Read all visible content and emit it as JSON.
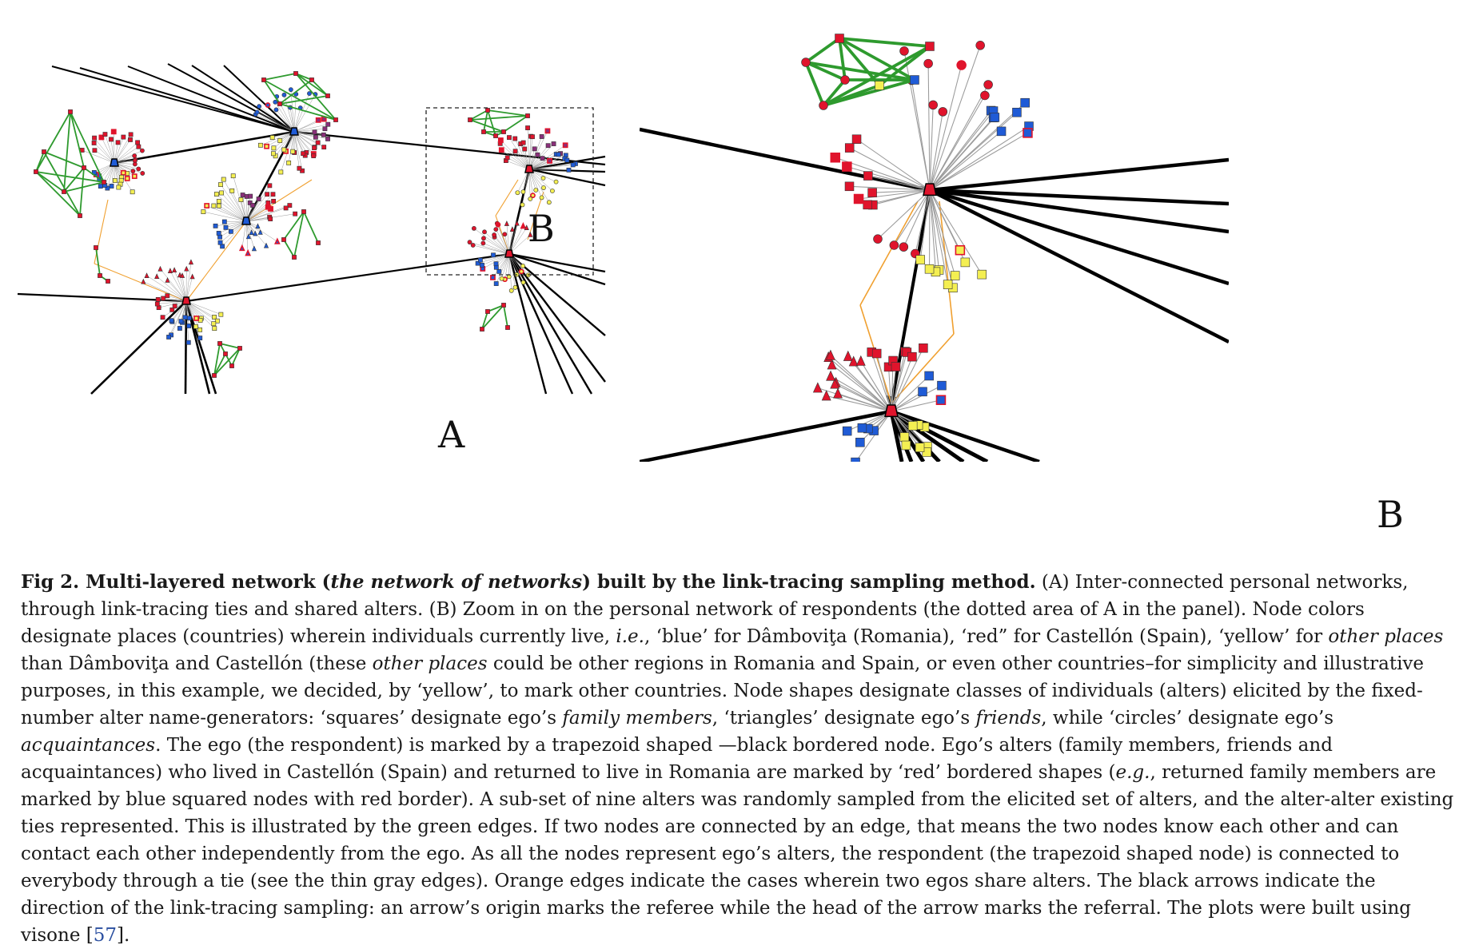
{
  "figure": {
    "panel_a_label": "A",
    "panel_a_inset_label": "B",
    "panel_b_label": "B",
    "colors": {
      "blue": "#1f5bd6",
      "red": "#e0142c",
      "yellow": "#f4ef52",
      "green": "#2e9a2e",
      "orange": "#f0a030",
      "gray": "#9a9a9a",
      "purple": "#8a2f7a"
    }
  },
  "caption": {
    "fig_label": "Fig 2.",
    "title_part1": " Multi-layered network (",
    "title_italic": "the network of networks",
    "title_part2": ") built by the link-tracing sampling method.",
    "s1": " (A) Inter-connected personal networks, through link-tracing ties and shared alters. (B) Zoom in on the personal network of respondents (the dotted area of A in the panel). Node colors designate places (countries) wherein individuals currently live, ",
    "s2_i": "i.e.",
    "s3": ", ‘blue’ for Dâmboviţa (Romania), ‘red” for Castellón (Spain), ‘yellow’ for ",
    "s4_i": "other places",
    "s5": " than Dâmboviţa and Castellón (these ",
    "s6_i": "other places",
    "s7": " could be other regions in Romania and Spain, or even other countries–for simplicity and illustrative purposes, in this example, we decided, by ‘yellow’, to mark other countries. Node shapes designate classes of individuals (alters) elicited by the fixed-number alter name-generators: ‘squares’ designate ego’s ",
    "s8_i": "family members",
    "s9": ", ‘triangles’ designate ego’s ",
    "s10_i": "friends",
    "s11": ", while ‘circles’ designate ego’s ",
    "s12_i": "acquaintances",
    "s13": ". The ego (the respondent) is marked by a trapezoid shaped —black bordered node. Ego’s alters (family members, friends and acquaintances) who lived in Castellón (Spain) and returned to live in Romania are marked by ‘red’ bordered shapes (",
    "s14_i": "e.g.",
    "s15": ", returned family members are marked by blue squared nodes with red border). A sub-set of nine alters was randomly sampled from the elicited set of alters, and the alter-alter existing ties represented. This is illustrated by the green edges. If two nodes are connected by an edge, that means the two nodes know each other and can contact each other independently from the ego. As all the nodes represent ego’s alters, the respondent (the trapezoid shaped node) is connected to everybody through a tie (see the thin gray edges). Orange edges indicate the cases wherein two egos share alters. The black arrows indicate the direction of the link-tracing sampling: an arrow’s origin marks the referee while the head of the arrow marks the referral. The plots were built using visone [",
    "ref": "57",
    "s16": "]."
  }
}
